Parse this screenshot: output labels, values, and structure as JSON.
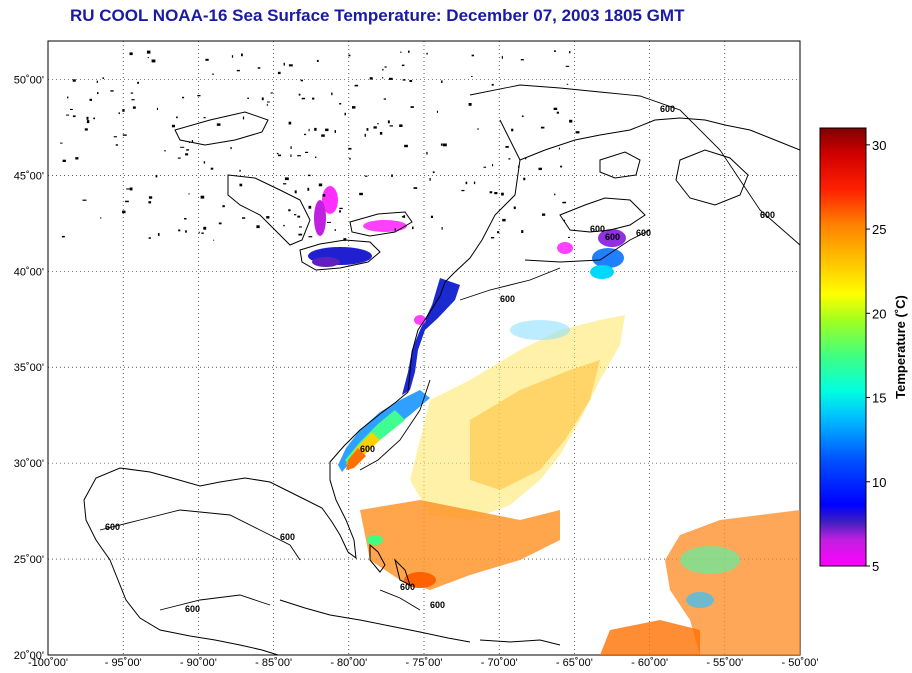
{
  "title": "RU COOL  NOAA-16  Sea Surface Temperature:  December 07, 2003 1805 GMT",
  "map": {
    "lon_range": [
      -100,
      -50
    ],
    "lat_range": [
      20,
      52
    ],
    "lon_ticks": [
      -100,
      -95,
      -90,
      -85,
      -80,
      -75,
      -70,
      -65,
      -60,
      -55,
      -50
    ],
    "lon_labels": [
      "-100˚00'",
      "- 95˚00'",
      "- 90˚00'",
      "- 85˚00'",
      "- 80˚00'",
      "- 75˚00'",
      "- 70˚00'",
      "- 65˚00'",
      "- 60˚00'",
      "- 55˚00'",
      "- 50˚00'"
    ],
    "lat_ticks": [
      20,
      25,
      30,
      35,
      40,
      45,
      50
    ],
    "lat_labels": [
      "20˚00'",
      "25˚00'",
      "30˚00'",
      "35˚00'",
      "40˚00'",
      "45˚00'",
      "50˚00'"
    ],
    "contour_label": "600",
    "grid": true
  },
  "colorbar": {
    "label": "Temperature (˚C)",
    "range": [
      5,
      31
    ],
    "ticks": [
      5,
      10,
      15,
      20,
      25,
      30
    ],
    "tick_labels": [
      "5",
      "10",
      "15",
      "20",
      "25",
      "30"
    ]
  }
}
